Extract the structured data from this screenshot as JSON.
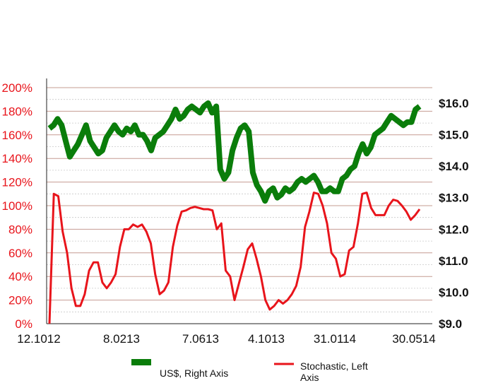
{
  "chart_data": {
    "type": "line",
    "x_ticks": [
      "12.1012",
      "8.0213",
      "7.0613",
      "4.1013",
      "31.0114",
      "30.0514"
    ],
    "left_axis": {
      "ticks": [
        "0%",
        "20%",
        "40%",
        "60%",
        "80%",
        "100%",
        "120%",
        "140%",
        "160%",
        "180%",
        "200%"
      ],
      "ylim": [
        0,
        200
      ],
      "color": "#e8141b"
    },
    "right_axis": {
      "ticks": [
        "$9.0",
        "$10.0",
        "$11.0",
        "$12.0",
        "$13.0",
        "$14.0",
        "$15.0",
        "$16.0"
      ],
      "ylim": [
        9.0,
        16.67
      ],
      "color": "#111111"
    },
    "grid": true,
    "legend_placement": "bottom",
    "series": [
      {
        "name": "US$, Right Axis",
        "axis": "right",
        "color": "#0a7d0a",
        "values": [
          15.2,
          15.3,
          15.5,
          15.3,
          14.8,
          14.3,
          14.5,
          14.7,
          15.0,
          15.3,
          14.8,
          14.6,
          14.4,
          14.5,
          14.9,
          15.1,
          15.3,
          15.1,
          15.0,
          15.2,
          15.1,
          15.3,
          15.0,
          15.0,
          14.8,
          14.5,
          14.9,
          15.0,
          15.1,
          15.3,
          15.5,
          15.8,
          15.5,
          15.6,
          15.8,
          15.9,
          15.8,
          15.7,
          15.9,
          16.0,
          15.7,
          15.9,
          13.9,
          13.6,
          13.8,
          14.5,
          14.9,
          15.2,
          15.3,
          15.1,
          13.8,
          13.4,
          13.2,
          12.9,
          13.2,
          13.3,
          13.0,
          13.1,
          13.3,
          13.2,
          13.3,
          13.5,
          13.6,
          13.5,
          13.6,
          13.7,
          13.5,
          13.2,
          13.2,
          13.3,
          13.2,
          13.2,
          13.6,
          13.7,
          13.9,
          14.0,
          14.4,
          14.7,
          14.4,
          14.6,
          15.0,
          15.1,
          15.2,
          15.4,
          15.6,
          15.5,
          15.4,
          15.3,
          15.4,
          15.4,
          15.8,
          15.9
        ]
      },
      {
        "name": "Stochastic, Left Axis",
        "axis": "left",
        "color": "#e8141b",
        "values": [
          0,
          110,
          108,
          78,
          60,
          30,
          15,
          15,
          25,
          45,
          52,
          52,
          35,
          30,
          35,
          42,
          65,
          80,
          80,
          84,
          82,
          84,
          78,
          68,
          42,
          25,
          28,
          35,
          65,
          83,
          95,
          96,
          98,
          99,
          98,
          97,
          97,
          96,
          80,
          85,
          45,
          40,
          20,
          34,
          48,
          63,
          68,
          55,
          40,
          20,
          12,
          15,
          20,
          17,
          20,
          25,
          32,
          48,
          82,
          95,
          111,
          110,
          100,
          85,
          60,
          55,
          40,
          42,
          62,
          65,
          85,
          110,
          111,
          98,
          92,
          92,
          92,
          100,
          105,
          104,
          100,
          95,
          88,
          92,
          97
        ]
      }
    ]
  }
}
